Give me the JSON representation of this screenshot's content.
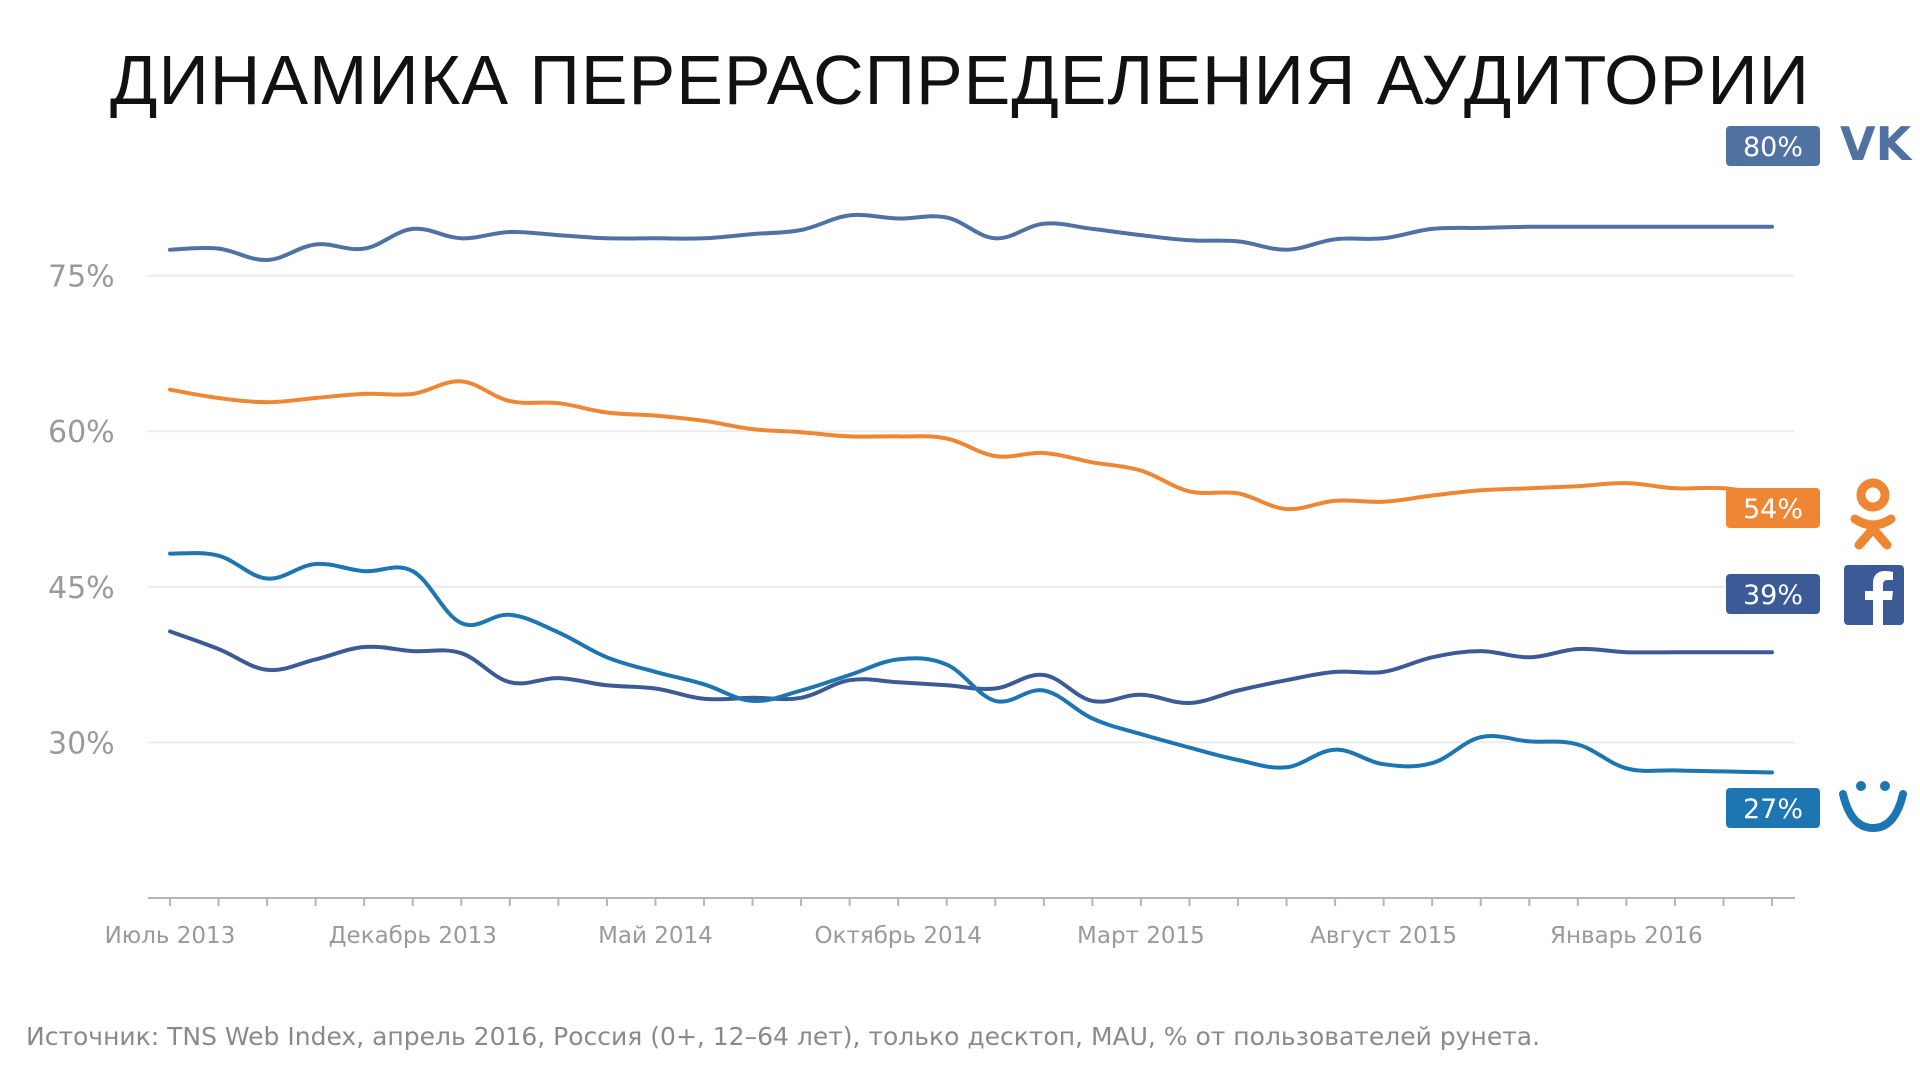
{
  "title": "ДИНАМИКА ПЕРЕРАСПРЕДЕЛЕНИЯ АУДИТОРИИ",
  "source": "Источник: TNS Web Index, апрель 2016, Россия (0+, 12–64 лет), только десктоп, MAU, % от пользователей рунета.",
  "chart_data": {
    "type": "line",
    "title": "ДИНАМИКА ПЕРЕРАСПРЕДЕЛЕНИЯ АУДИТОРИИ",
    "xlabel": "",
    "ylabel": "",
    "ylim": [
      15,
      90
    ],
    "y_ticks": [
      30,
      45,
      60,
      75
    ],
    "y_tick_labels": [
      "30%",
      "45%",
      "60%",
      "75%"
    ],
    "x": [
      "2013-07",
      "2013-08",
      "2013-09",
      "2013-10",
      "2013-11",
      "2013-12",
      "2014-01",
      "2014-02",
      "2014-03",
      "2014-04",
      "2014-05",
      "2014-06",
      "2014-07",
      "2014-08",
      "2014-09",
      "2014-10",
      "2014-11",
      "2014-12",
      "2015-01",
      "2015-02",
      "2015-03",
      "2015-04",
      "2015-05",
      "2015-06",
      "2015-07",
      "2015-08",
      "2015-09",
      "2015-10",
      "2015-11",
      "2015-12",
      "2016-01",
      "2016-02",
      "2016-03",
      "2016-04"
    ],
    "x_tick_labels": [
      "Июль 2013",
      "Декабрь 2013",
      "Май 2014",
      "Октябрь 2014",
      "Март 2015",
      "Август 2015",
      "Январь 2016"
    ],
    "x_tick_index": [
      0,
      5,
      10,
      15,
      20,
      25,
      30
    ],
    "grid": true,
    "series": [
      {
        "name": "ВКонтакте",
        "icon": "vk-logo-icon",
        "color": "#4f72a3",
        "end_label": "80%",
        "values": [
          77.5,
          77.6,
          76.5,
          78.0,
          77.6,
          79.5,
          78.6,
          79.2,
          78.9,
          78.6,
          78.6,
          78.6,
          79.0,
          79.4,
          80.8,
          80.5,
          80.6,
          78.6,
          80.0,
          79.5,
          78.9,
          78.4,
          78.3,
          77.5,
          78.5,
          78.6,
          79.5,
          79.6,
          79.7,
          79.7,
          79.7,
          79.7,
          79.7,
          79.7
        ]
      },
      {
        "name": "Одноклассники",
        "icon": "ok-logo-icon",
        "color": "#ee8634",
        "end_label": "54%",
        "values": [
          64.0,
          63.2,
          62.8,
          63.2,
          63.6,
          63.6,
          64.8,
          62.9,
          62.7,
          61.8,
          61.5,
          61.0,
          60.2,
          59.9,
          59.5,
          59.5,
          59.3,
          57.6,
          57.9,
          57.0,
          56.2,
          54.2,
          54.0,
          52.5,
          53.3,
          53.2,
          53.8,
          54.3,
          54.5,
          54.7,
          55.0,
          54.5,
          54.5,
          53.8
        ]
      },
      {
        "name": "Facebook",
        "icon": "facebook-logo-icon",
        "color": "#3c5a96",
        "end_label": "39%",
        "values": [
          40.7,
          39.0,
          37.0,
          38.0,
          39.2,
          38.8,
          38.6,
          35.8,
          36.2,
          35.5,
          35.2,
          34.2,
          34.3,
          34.3,
          36.0,
          35.8,
          35.5,
          35.2,
          36.5,
          34.0,
          34.6,
          33.8,
          35.0,
          36.0,
          36.8,
          36.8,
          38.2,
          38.8,
          38.2,
          39.0,
          38.7,
          38.7,
          38.7,
          38.7
        ]
      },
      {
        "name": "Мой Мир",
        "icon": "mymir-smile-logo-icon",
        "color": "#1d75b2",
        "end_label": "27%",
        "values": [
          48.2,
          48.0,
          45.8,
          47.2,
          46.5,
          46.5,
          41.5,
          42.3,
          40.6,
          38.2,
          36.8,
          35.6,
          34.0,
          35.0,
          36.5,
          38.0,
          37.5,
          34.0,
          35.0,
          32.3,
          30.8,
          29.5,
          28.3,
          27.6,
          29.3,
          27.9,
          28.0,
          30.5,
          30.1,
          29.8,
          27.5,
          27.3,
          27.2,
          27.1
        ]
      }
    ]
  }
}
